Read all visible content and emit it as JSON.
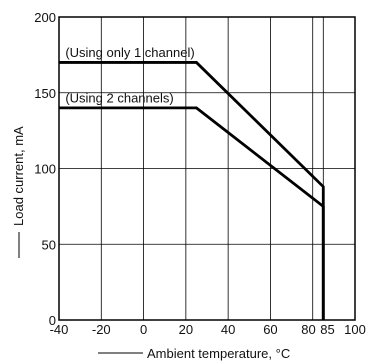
{
  "chart_data": {
    "type": "line",
    "xlabel": "Ambient temperature, °C",
    "ylabel": "Load current, mA",
    "xlim": [
      -40,
      100
    ],
    "ylim": [
      0,
      200
    ],
    "x_ticks": [
      -40,
      -20,
      0,
      20,
      40,
      60,
      80,
      85,
      100
    ],
    "x_tick_labels": [
      "-40",
      "-20",
      "0",
      "20",
      "40",
      "60",
      "80",
      "85",
      "100"
    ],
    "y_ticks": [
      0,
      50,
      100,
      150,
      200
    ],
    "y_tick_labels": [
      "0",
      "50",
      "100",
      "150",
      "200"
    ],
    "grid": true,
    "series": [
      {
        "x": [
          -40,
          25,
          85,
          85
        ],
        "y": [
          170,
          170,
          88,
          0
        ]
      },
      {
        "x": [
          -40,
          25,
          85,
          85
        ],
        "y": [
          140,
          140,
          75,
          0
        ]
      }
    ],
    "annotations": [
      {
        "text": "(Using only 1 channel)",
        "x": -37,
        "y": 177
      },
      {
        "text": "(Using 2 channels)",
        "x": -37,
        "y": 147
      }
    ],
    "colors": {
      "line": "#000000",
      "grid": "#000000"
    }
  }
}
